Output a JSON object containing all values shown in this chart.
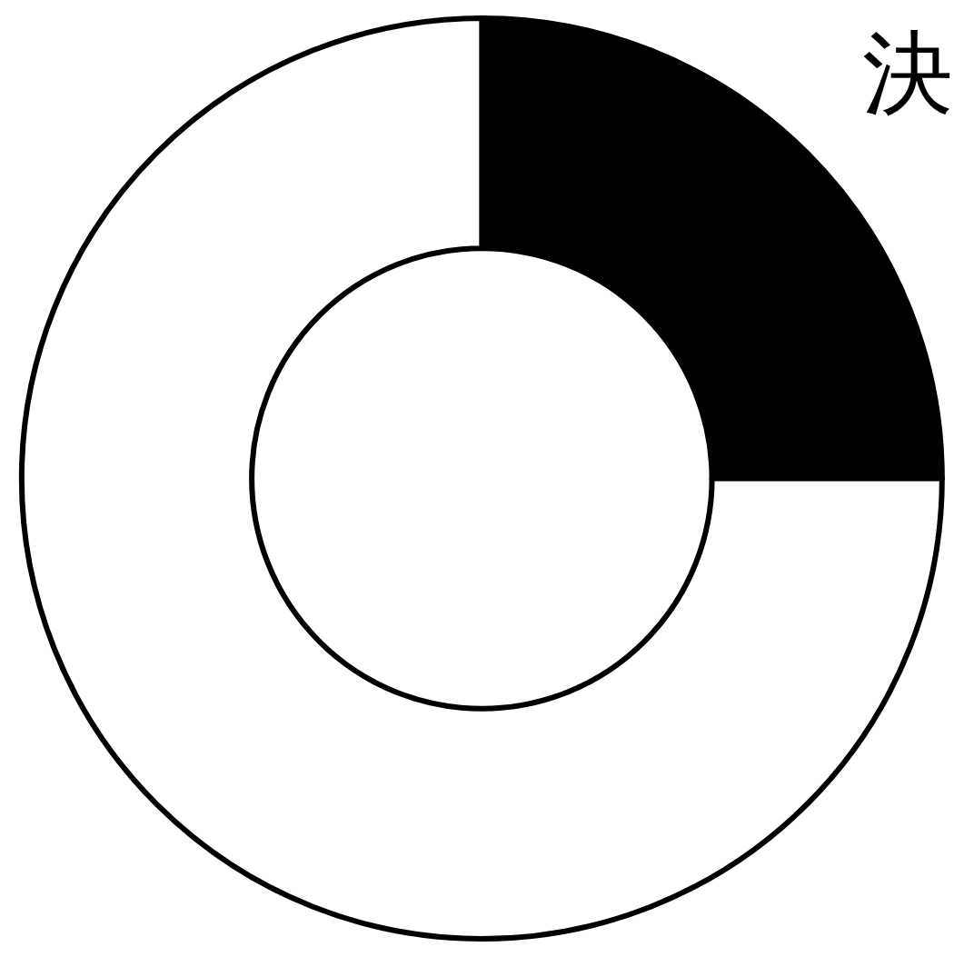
{
  "chart_data": {
    "type": "donut",
    "title": "決",
    "categories": [
      null,
      null
    ],
    "values": [
      25,
      75
    ],
    "colors": [
      "#000000",
      "#ffffff"
    ]
  }
}
